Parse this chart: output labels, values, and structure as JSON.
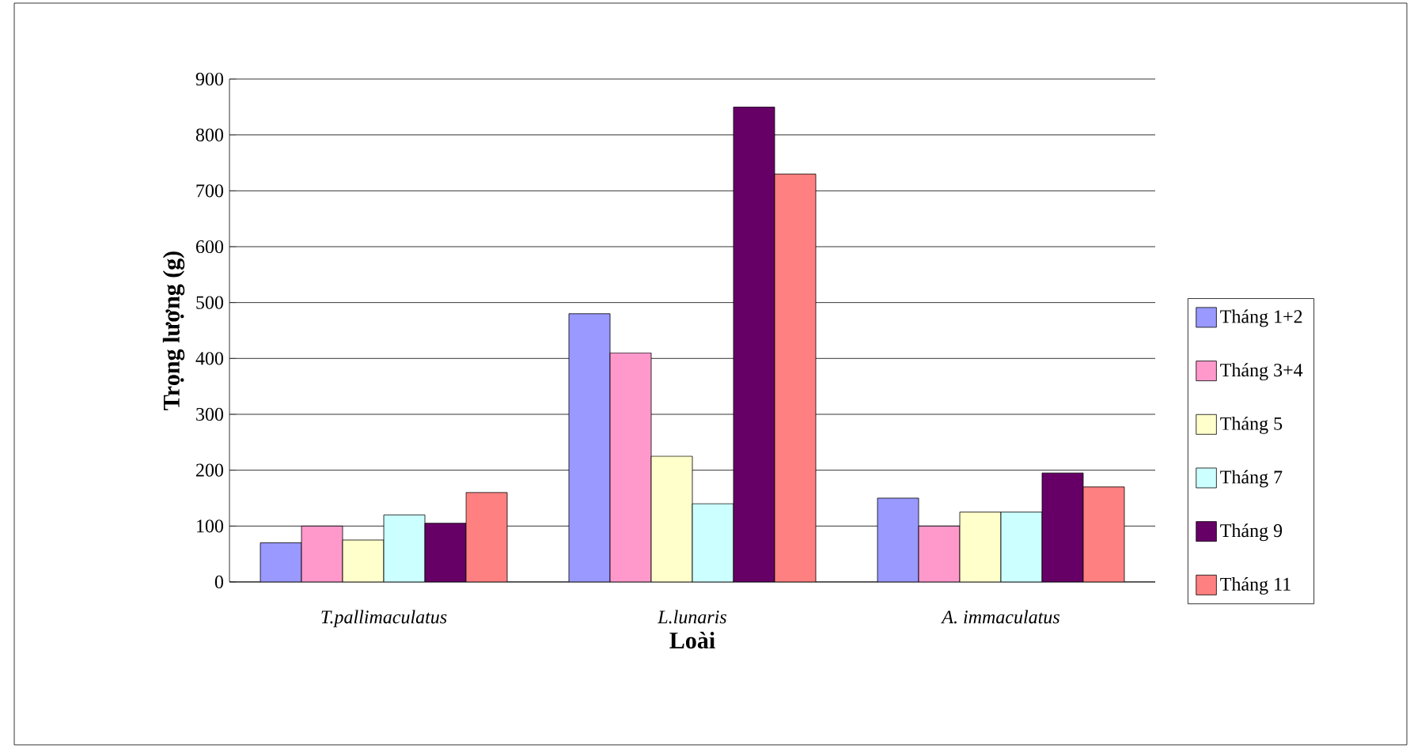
{
  "chart_data": {
    "type": "bar",
    "xlabel": "Loài",
    "ylabel": "Trọng lượng (g)",
    "categories": [
      "T.pallimaculatus",
      "L.lunaris",
      "A. immaculatus"
    ],
    "series": [
      {
        "name": "Tháng 1+2",
        "color": "#9999ff",
        "values": [
          70,
          480,
          150
        ]
      },
      {
        "name": "Tháng 3+4",
        "color": "#ff99cc",
        "values": [
          100,
          410,
          100
        ]
      },
      {
        "name": "Tháng 5",
        "color": "#ffffcc",
        "values": [
          75,
          225,
          125
        ]
      },
      {
        "name": "Tháng 7",
        "color": "#ccffff",
        "values": [
          120,
          140,
          125
        ]
      },
      {
        "name": "Tháng 9",
        "color": "#660066",
        "values": [
          105,
          850,
          195
        ]
      },
      {
        "name": "Tháng 11",
        "color": "#ff8080",
        "values": [
          160,
          730,
          170
        ]
      }
    ],
    "ylim": [
      0,
      900
    ],
    "yticks": [
      0,
      100,
      200,
      300,
      400,
      500,
      600,
      700,
      800,
      900
    ],
    "grid": "y",
    "legend": "right"
  }
}
